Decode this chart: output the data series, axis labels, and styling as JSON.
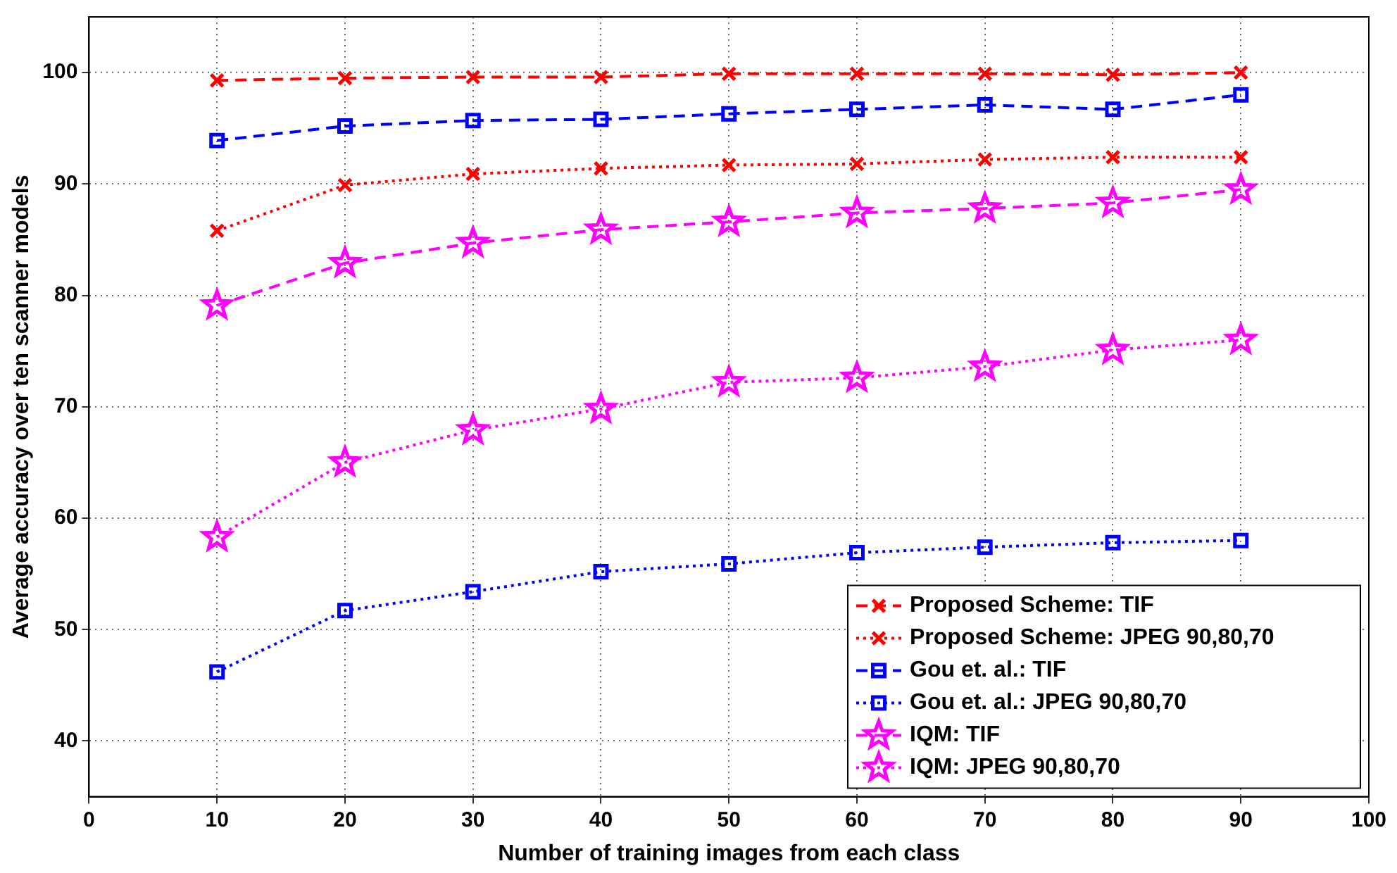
{
  "chart_data": {
    "type": "line",
    "xlabel": "Number of training images from each class",
    "ylabel": "Average accuracy over ten scanner models",
    "x": [
      10,
      20,
      30,
      40,
      50,
      60,
      70,
      80,
      90
    ],
    "series": [
      {
        "name": "Proposed Scheme: TIF",
        "color": "#ff0000",
        "marker": "cross",
        "line_style": "dashed",
        "values": [
          99.3,
          99.5,
          99.6,
          99.6,
          99.9,
          99.9,
          99.9,
          99.8,
          100
        ]
      },
      {
        "name": "Proposed Scheme: JPEG 90,80,70",
        "color": "#ff0000",
        "marker": "cross",
        "line_style": "dotted",
        "values": [
          85.8,
          89.9,
          90.9,
          91.4,
          91.7,
          91.8,
          92.2,
          92.4,
          92.4
        ]
      },
      {
        "name": "Gou et. al.: TIF",
        "color": "#0000ff",
        "marker": "square",
        "line_style": "dashed",
        "values": [
          93.9,
          95.2,
          95.7,
          95.8,
          96.3,
          96.7,
          97.1,
          96.7,
          98.0
        ]
      },
      {
        "name": "Gou et. al.: JPEG 90,80,70",
        "color": "#0000ff",
        "marker": "square",
        "line_style": "dotted",
        "values": [
          46.2,
          51.7,
          53.4,
          55.2,
          55.9,
          56.9,
          57.4,
          57.8,
          58.0
        ]
      },
      {
        "name": "IQM: TIF",
        "color": "#ff00ff",
        "marker": "star",
        "line_style": "dashed",
        "values": [
          79.1,
          82.9,
          84.7,
          85.9,
          86.6,
          87.4,
          87.8,
          88.3,
          89.5
        ]
      },
      {
        "name": "IQM: JPEG 90,80,70",
        "color": "#ff00ff",
        "marker": "star",
        "line_style": "dotted",
        "values": [
          58.3,
          65.0,
          67.9,
          69.8,
          72.2,
          72.6,
          73.6,
          75.1,
          76.0
        ]
      }
    ],
    "xlim": [
      0,
      100
    ],
    "xticks": [
      0,
      10,
      20,
      30,
      40,
      50,
      60,
      70,
      80,
      90,
      100
    ],
    "ylim": [
      35,
      105
    ],
    "yticks": [
      40,
      50,
      60,
      70,
      80,
      90,
      100
    ],
    "grid": true,
    "legend": "bottom right"
  }
}
